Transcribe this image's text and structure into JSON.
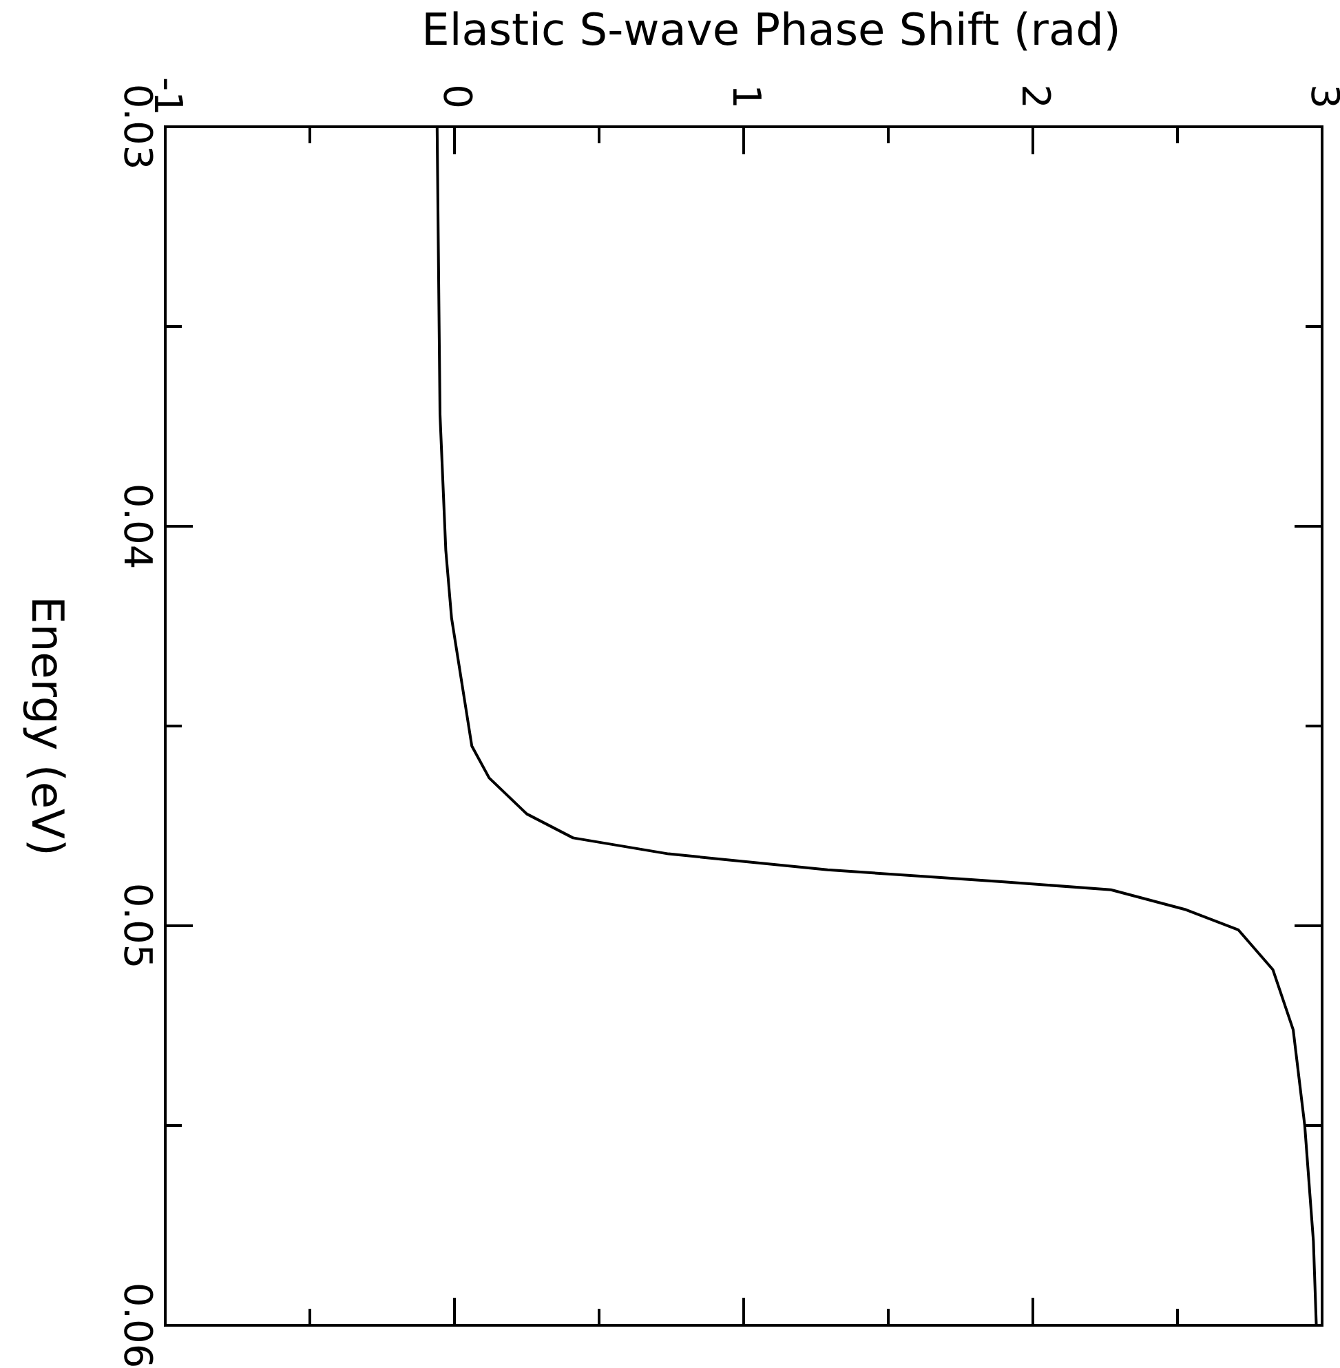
{
  "chart_data": {
    "type": "line",
    "xlabel": "Elastic S-wave Phase Shift (rad)",
    "ylabel": "Energy (eV)",
    "xlim": [
      -1,
      3
    ],
    "xticks": [
      -1,
      {
        "value": -0.5,
        "label": null
      },
      0,
      {
        "value": 0.5,
        "label": null
      },
      1,
      {
        "value": 1.5,
        "label": null
      },
      2,
      {
        "value": 2.5,
        "label": null
      },
      3
    ],
    "ylim": [
      0.06,
      0.03
    ],
    "yticks": [
      0.03,
      {
        "value": 0.035,
        "label": null
      },
      0.04,
      {
        "value": 0.045,
        "label": null
      },
      0.05,
      {
        "value": 0.055,
        "label": null
      },
      0.06
    ],
    "grid": false,
    "legend": false,
    "marker": "none",
    "line_style": "solid",
    "series": [
      {
        "color": "#000000",
        "x": [
          -0.06,
          -0.05,
          -0.03,
          -0.01,
          0.06,
          0.12,
          0.25,
          0.41,
          0.74,
          1.29,
          1.9,
          2.27,
          2.53,
          2.71,
          2.83,
          2.9,
          2.94,
          2.97,
          2.98
        ],
        "values": [
          0.03,
          0.0372,
          0.0406,
          0.0423,
          0.0455,
          0.0463,
          0.0472,
          0.0478,
          0.0482,
          0.0486,
          0.0489,
          0.0491,
          0.0496,
          0.0501,
          0.0511,
          0.0526,
          0.055,
          0.0579,
          0.06
        ]
      }
    ]
  }
}
